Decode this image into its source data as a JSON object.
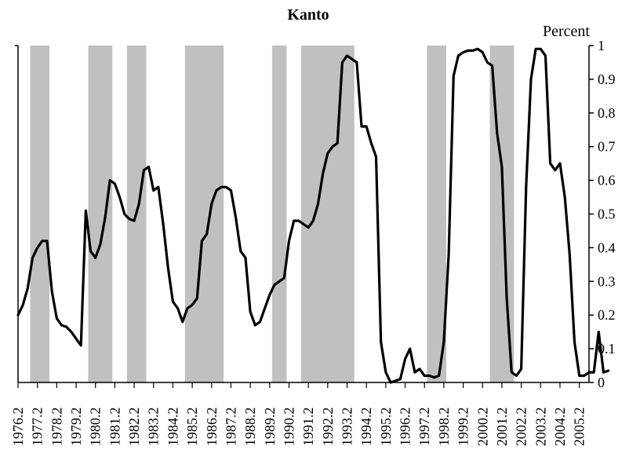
{
  "chart_data": {
    "type": "line",
    "title": "Kanto",
    "ylabel": "Percent",
    "xlabel": "",
    "ylim": [
      0,
      1
    ],
    "y_axis_side": "right",
    "y_ticks": [
      "0",
      "0.1",
      "0.2",
      "0.3",
      "0.4",
      "0.5",
      "0.6",
      "0.7",
      "0.8",
      "0.9",
      "1"
    ],
    "x_tick_labels": [
      "1976.2",
      "1977.2",
      "1978.2",
      "1979.2",
      "1980.2",
      "1981.2",
      "1982.2",
      "1983.2",
      "1984.2",
      "1985.2",
      "1986.2",
      "1987.2",
      "1988.2",
      "1989.2",
      "1990.2",
      "1991.2",
      "1992.2",
      "1993.2",
      "1994.2",
      "1995.2",
      "1996.2",
      "1997.2",
      "1998.2",
      "1999.2",
      "2000.2",
      "2001.2",
      "2002.2",
      "2003.2",
      "2004.2",
      "2005.2"
    ],
    "x_start": "1976.2",
    "x_end": "2005.4",
    "shaded_periods": [
      {
        "start": "1977.1",
        "end": "1977.4"
      },
      {
        "start": "1980.1",
        "end": "1981.1"
      },
      {
        "start": "1982.1",
        "end": "1982.4"
      },
      {
        "start": "1985.1",
        "end": "1986.4"
      },
      {
        "start": "1989.3",
        "end": "1990.1"
      },
      {
        "start": "1991.1",
        "end": "1993.3"
      },
      {
        "start": "1997.3",
        "end": "1998.2"
      },
      {
        "start": "2000.4",
        "end": "2001.4"
      }
    ],
    "series": [
      {
        "values": [
          0.2,
          0.23,
          0.28,
          0.37,
          0.4,
          0.42,
          0.42,
          0.27,
          0.19,
          0.17,
          0.165,
          0.15,
          0.13,
          0.11,
          0.51,
          0.39,
          0.37,
          0.41,
          0.49,
          0.6,
          0.59,
          0.55,
          0.5,
          0.485,
          0.48,
          0.53,
          0.63,
          0.64,
          0.57,
          0.58,
          0.47,
          0.34,
          0.24,
          0.22,
          0.18,
          0.22,
          0.23,
          0.25,
          0.42,
          0.44,
          0.53,
          0.57,
          0.58,
          0.58,
          0.57,
          0.49,
          0.39,
          0.37,
          0.21,
          0.17,
          0.18,
          0.22,
          0.26,
          0.29,
          0.3,
          0.31,
          0.42,
          0.48,
          0.48,
          0.47,
          0.46,
          0.48,
          0.53,
          0.62,
          0.68,
          0.7,
          0.71,
          0.95,
          0.97,
          0.96,
          0.95,
          0.76,
          0.76,
          0.71,
          0.67,
          0.12,
          0.03,
          0.0,
          0.005,
          0.01,
          0.07,
          0.1,
          0.03,
          0.04,
          0.02,
          0.02,
          0.015,
          0.02,
          0.12,
          0.38,
          0.91,
          0.97,
          0.98,
          0.985,
          0.985,
          0.99,
          0.98,
          0.95,
          0.94,
          0.74,
          0.64,
          0.25,
          0.03,
          0.02,
          0.04,
          0.58,
          0.9,
          0.99,
          0.99,
          0.97,
          0.65,
          0.63,
          0.65,
          0.55,
          0.38,
          0.12,
          0.02,
          0.02,
          0.03,
          0.03,
          0.15,
          0.03,
          0.035
        ]
      }
    ]
  }
}
